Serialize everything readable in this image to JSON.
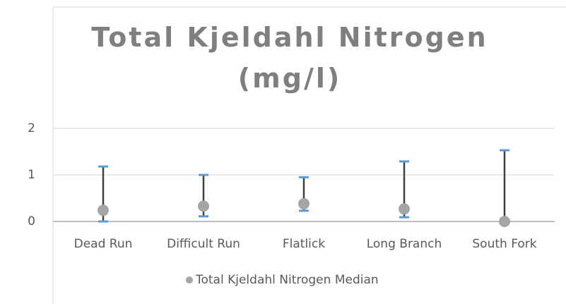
{
  "chart_data": {
    "type": "dot",
    "title": "Total Kjeldahl Nitrogen (mg/l)",
    "categories": [
      "Dead Run",
      "Difficult Run",
      "Flatlick",
      "Long Branch",
      "South Fork"
    ],
    "series": [
      {
        "name": "Total Kjeldahl Nitrogen Median",
        "color": "#a5a5a5",
        "values": [
          0.24,
          0.33,
          0.38,
          0.27,
          0
        ],
        "high": [
          1.18,
          1.0,
          0.95,
          1.29,
          1.53
        ],
        "low": [
          0,
          0.11,
          0.23,
          0.09,
          0
        ]
      }
    ],
    "error_bar_color": "#404040",
    "cap_color": "#5b9bd5",
    "ylim": [
      0,
      2
    ],
    "yticks": [
      0,
      1,
      2
    ],
    "grid": true,
    "legend": "bottom"
  }
}
